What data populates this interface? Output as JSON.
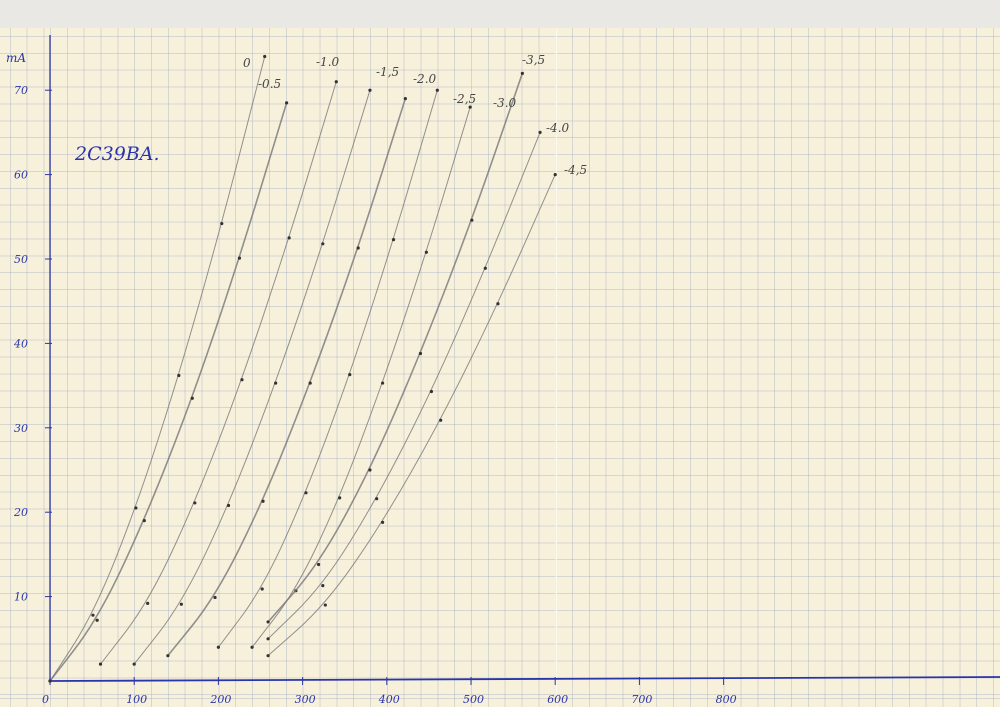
{
  "chart_data": {
    "type": "line",
    "title": "2C39BA.",
    "xlabel": "",
    "ylabel": "mA",
    "xlim": [
      0,
      800
    ],
    "ylim": [
      0,
      75
    ],
    "xticks": [
      "0",
      "100",
      "200",
      "300",
      "400",
      "500",
      "600",
      "700",
      "800"
    ],
    "yticks": [
      "10",
      "20",
      "30",
      "40",
      "50",
      "60",
      "70"
    ],
    "grid": true,
    "colors": {
      "axis": "#2b35a8",
      "curve": "#777777",
      "paper": "#f7f1dc",
      "text": "#2b35a8"
    },
    "series": [
      {
        "name": "0",
        "points": [
          [
            0,
            0
          ],
          [
            51,
            7.8
          ],
          [
            102,
            20.5
          ],
          [
            153,
            36.2
          ],
          [
            204,
            54.2
          ],
          [
            255,
            74
          ]
        ]
      },
      {
        "name": "-0.5",
        "points": [
          [
            0,
            0
          ],
          [
            56,
            7.2
          ],
          [
            112,
            19
          ],
          [
            169,
            33.5
          ],
          [
            225,
            50.1
          ],
          [
            281,
            68.5
          ]
        ]
      },
      {
        "name": "-1.0",
        "points": [
          [
            60,
            2
          ],
          [
            116,
            9.2
          ],
          [
            172,
            21.1
          ],
          [
            228,
            35.7
          ],
          [
            284,
            52.5
          ],
          [
            340,
            71
          ]
        ]
      },
      {
        "name": "-1,5",
        "points": [
          [
            100,
            2
          ],
          [
            156,
            9.1
          ],
          [
            212,
            20.8
          ],
          [
            268,
            35.3
          ],
          [
            324,
            51.8
          ],
          [
            380,
            70
          ]
        ]
      },
      {
        "name": "-2.0",
        "points": [
          [
            140,
            3
          ],
          [
            196,
            9.9
          ],
          [
            253,
            21.3
          ],
          [
            309,
            35.3
          ],
          [
            366,
            51.3
          ],
          [
            422,
            69
          ]
        ]
      },
      {
        "name": "-2,5",
        "points": [
          [
            200,
            4
          ],
          [
            252,
            10.9
          ],
          [
            304,
            22.3
          ],
          [
            356,
            36.3
          ],
          [
            408,
            52.3
          ],
          [
            460,
            70
          ]
        ]
      },
      {
        "name": "-3.0",
        "points": [
          [
            240,
            4
          ],
          [
            292,
            10.7
          ],
          [
            344,
            21.7
          ],
          [
            395,
            35.3
          ],
          [
            447,
            50.8
          ],
          [
            499,
            68
          ]
        ]
      },
      {
        "name": "-3,5",
        "points": [
          [
            259,
            7
          ],
          [
            319,
            13.8
          ],
          [
            380,
            25
          ],
          [
            440,
            38.8
          ],
          [
            501,
            54.6
          ],
          [
            561,
            72
          ]
        ]
      },
      {
        "name": "-4.0",
        "points": [
          [
            259,
            5
          ],
          [
            324,
            11.3
          ],
          [
            388,
            21.6
          ],
          [
            453,
            34.3
          ],
          [
            517,
            48.9
          ],
          [
            582,
            65
          ]
        ]
      },
      {
        "name": "-4,5",
        "points": [
          [
            259,
            3
          ],
          [
            327,
            9
          ],
          [
            395,
            18.8
          ],
          [
            464,
            30.9
          ],
          [
            532,
            44.7
          ],
          [
            600,
            60
          ]
        ]
      }
    ]
  }
}
